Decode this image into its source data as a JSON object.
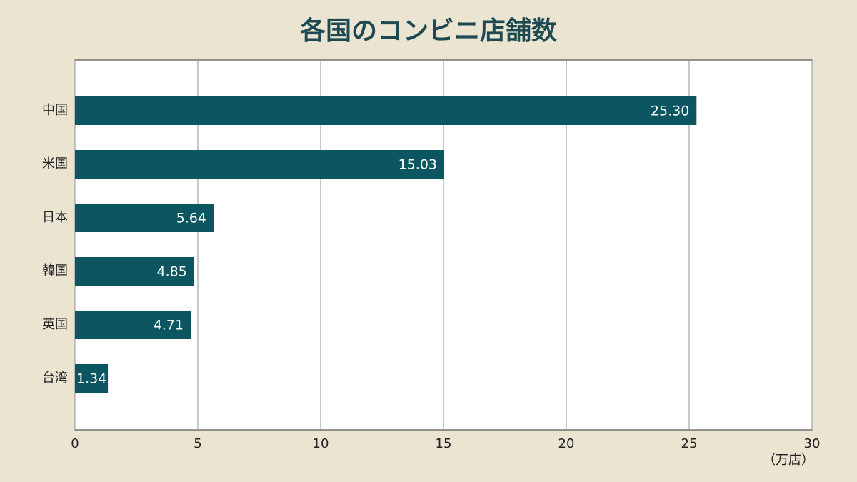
{
  "chart_data": {
    "type": "hbar",
    "title": "各国のコンビニ店舗数",
    "categories": [
      "中国",
      "米国",
      "日本",
      "韓国",
      "英国",
      "台湾"
    ],
    "values": [
      25.3,
      15.03,
      5.64,
      4.85,
      4.71,
      1.34
    ],
    "value_labels": [
      "25.30",
      "15.03",
      "5.64",
      "4.85",
      "4.71",
      "1.34"
    ],
    "color": "#0b5661",
    "xlim": [
      0,
      30
    ],
    "xticks": [
      0,
      5,
      10,
      15,
      20,
      25,
      30
    ],
    "x_unit_label": "（万店）",
    "grid": true
  }
}
